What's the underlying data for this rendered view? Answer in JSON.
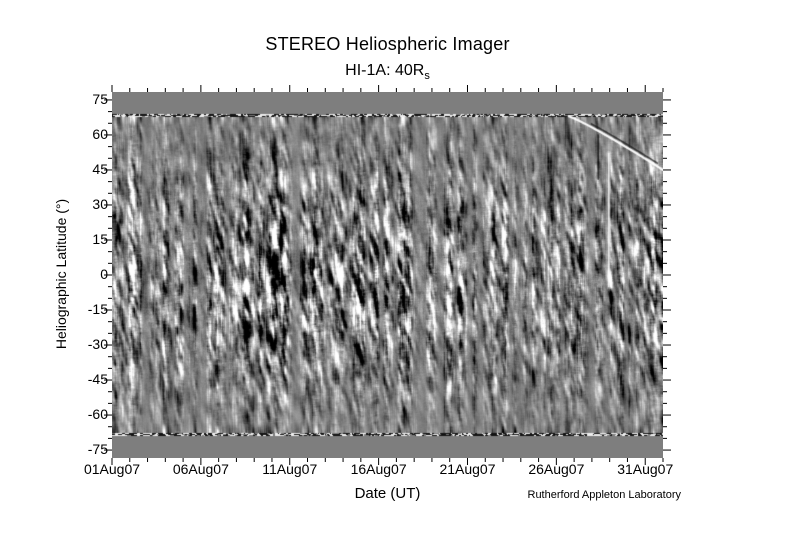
{
  "figure": {
    "title": "STEREO Heliospheric Imager",
    "subtitle_prefix": "HI-1A: 40R",
    "subtitle_subscript": "s",
    "xlabel": "Date (UT)",
    "ylabel": "Heliographic Latitude (°)",
    "credit": "Rutherford Appleton Laboratory"
  },
  "chart_data": {
    "type": "heatmap",
    "title": "STEREO Heliospheric Imager",
    "subtitle": "HI-1A: 40Rs",
    "xlabel": "Date (UT)",
    "ylabel": "Heliographic Latitude (°)",
    "grid": "off",
    "legend": "off",
    "x_tick_labels": [
      "01Aug07",
      "06Aug07",
      "11Aug07",
      "16Aug07",
      "21Aug07",
      "26Aug07",
      "31Aug07"
    ],
    "x_major_ticks_day": [
      0,
      5,
      10,
      15,
      20,
      25,
      30
    ],
    "x_minor_tick_step_days": 1,
    "x_range_days": [
      0,
      31
    ],
    "y_ticks": [
      75,
      60,
      45,
      30,
      15,
      0,
      -15,
      -30,
      -45,
      -60,
      -75
    ],
    "y_minor_tick_step_deg": 5,
    "y_render_range": [
      -78.4,
      78.4
    ],
    "image": {
      "kind": "running-difference grayscale J-map, time vs heliographic latitude, vertical streak texture, strongest contrast near central latitudes",
      "data_lat_extent": [
        -68.3,
        68.3
      ],
      "no_data_color": "#7e7e7e",
      "noise_seed": 20070801,
      "boundary_speckle": "thin black/white speckled rows at ±68° data edges",
      "features": [
        {
          "name": "bright-object-track",
          "desc": "bright streak descending across upper right of map",
          "start": {
            "day": 25.7,
            "lat": 68
          },
          "end": {
            "day": 31.0,
            "lat": 45
          }
        },
        {
          "name": "dark-vertical-artifact",
          "day": 27.35,
          "lat_from": 60,
          "lat_to": 41
        },
        {
          "name": "bright-vertical-streak",
          "day": 27.95,
          "lat_from": 52,
          "lat_to": -5
        }
      ]
    }
  }
}
